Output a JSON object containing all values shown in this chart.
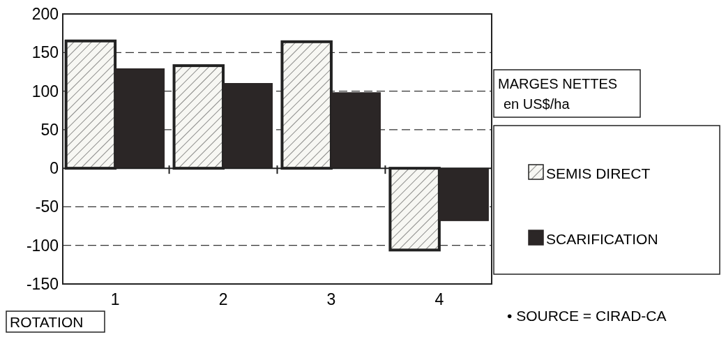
{
  "chart_data": {
    "type": "bar",
    "title": "MARGES NETTES\nen US$/ha",
    "xlabel": "ROTATION",
    "categories": [
      "1",
      "2",
      "3",
      "4"
    ],
    "series": [
      {
        "name": "SEMIS DIRECT",
        "color": "#222222",
        "values": [
          165,
          133,
          164,
          -106
        ]
      },
      {
        "name": "SCARIFICATION",
        "color": "#2b2626",
        "values": [
          129,
          110,
          98,
          -68
        ]
      }
    ],
    "ylim": [
      -150,
      200
    ],
    "yticks": [
      -150,
      -100,
      -50,
      0,
      50,
      100,
      150,
      200
    ],
    "grid": "y",
    "legend": "right",
    "annotations": [
      "• SOURCE = CIRAD-CA"
    ]
  }
}
